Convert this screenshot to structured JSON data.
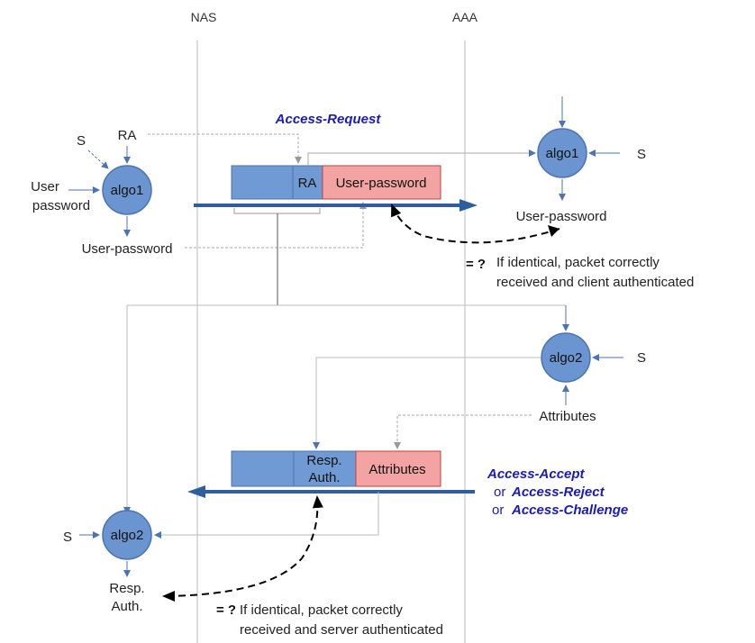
{
  "columns": {
    "left": "NAS",
    "right": "AAA"
  },
  "request": {
    "label": "Access-Request",
    "field_ra": "RA",
    "field_password": "User-password"
  },
  "nas_side": {
    "input_s": "S",
    "input_ra": "RA",
    "input_user_password_line1": "User",
    "input_user_password_line2": "password",
    "algo": "algo1",
    "output": "User-password"
  },
  "aaa_side": {
    "input_s_1": "S",
    "algo1": "algo1",
    "output1": "User-password",
    "input_s_2": "S",
    "algo2": "algo2",
    "attributes": "Attributes"
  },
  "check1": {
    "operator": "= ?",
    "line1": "If identical, packet correctly",
    "line2": "received and client authenticated"
  },
  "response": {
    "field_resp_line1": "Resp.",
    "field_resp_line2": "Auth.",
    "field_attributes": "Attributes",
    "label_line1": "Access-Accept",
    "or_1": "or",
    "label_line2": "Access-Reject",
    "or_2": "or",
    "label_line3": "Access-Challenge"
  },
  "nas_verify": {
    "input_s": "S",
    "algo": "algo2",
    "output_line1": "Resp.",
    "output_line2": "Auth."
  },
  "check2": {
    "operator": "= ?",
    "line1": "If identical, packet correctly",
    "line2": "received and server authenticated"
  },
  "colors": {
    "node_fill": "#6b95d1",
    "node_stroke": "#4c74b0",
    "field_blue": "#6f9ad3",
    "field_pink": "#f4a3a3",
    "arrow_blue": "#2e5e9e",
    "message_text": "#1a1ab8",
    "guide_line": "#bbbbbb"
  }
}
